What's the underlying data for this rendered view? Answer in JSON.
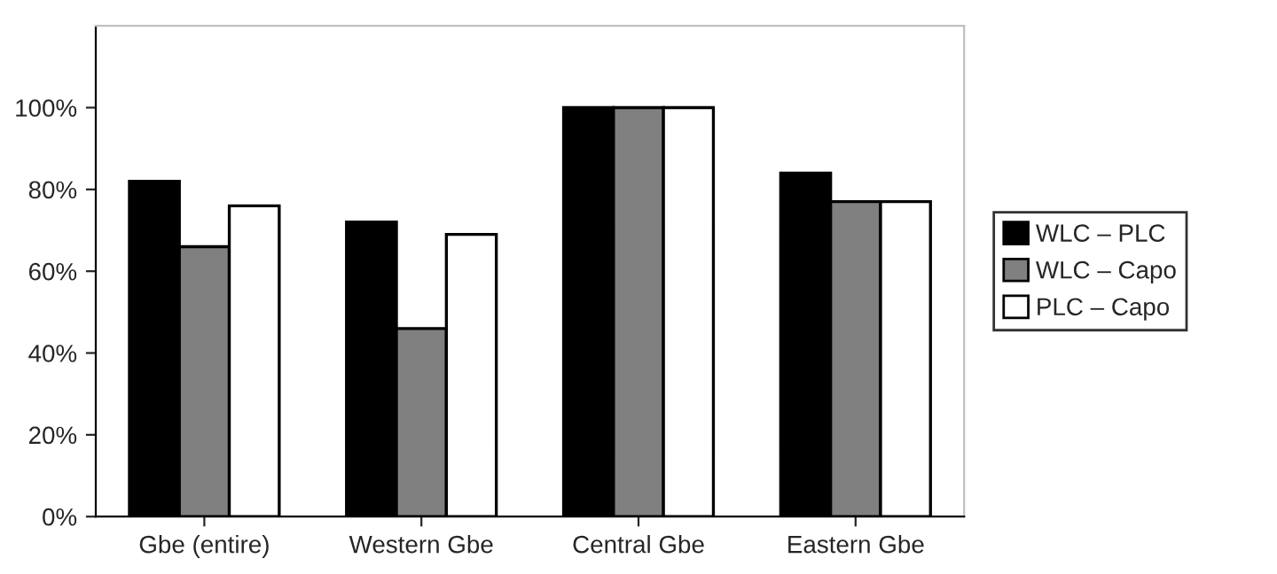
{
  "chart_data": {
    "type": "bar",
    "categories": [
      "Gbe (entire)",
      "Western Gbe",
      "Central Gbe",
      "Eastern Gbe"
    ],
    "series": [
      {
        "name": "WLC – PLC",
        "color": "#000000",
        "values": [
          82,
          72,
          100,
          84
        ]
      },
      {
        "name": "WLC – Capo",
        "color": "#808080",
        "values": [
          66,
          46,
          100,
          77
        ]
      },
      {
        "name": "PLC – Capo",
        "color": "#ffffff",
        "values": [
          76,
          69,
          100,
          77
        ]
      }
    ],
    "ylim": [
      0,
      120
    ],
    "yticks": [
      {
        "value": 0,
        "label": "0%"
      },
      {
        "value": 20,
        "label": "20%"
      },
      {
        "value": 40,
        "label": "40%"
      },
      {
        "value": 60,
        "label": "60%"
      },
      {
        "value": 80,
        "label": "80%"
      },
      {
        "value": 100,
        "label": "100%"
      }
    ],
    "grid": false,
    "legend": "right"
  }
}
